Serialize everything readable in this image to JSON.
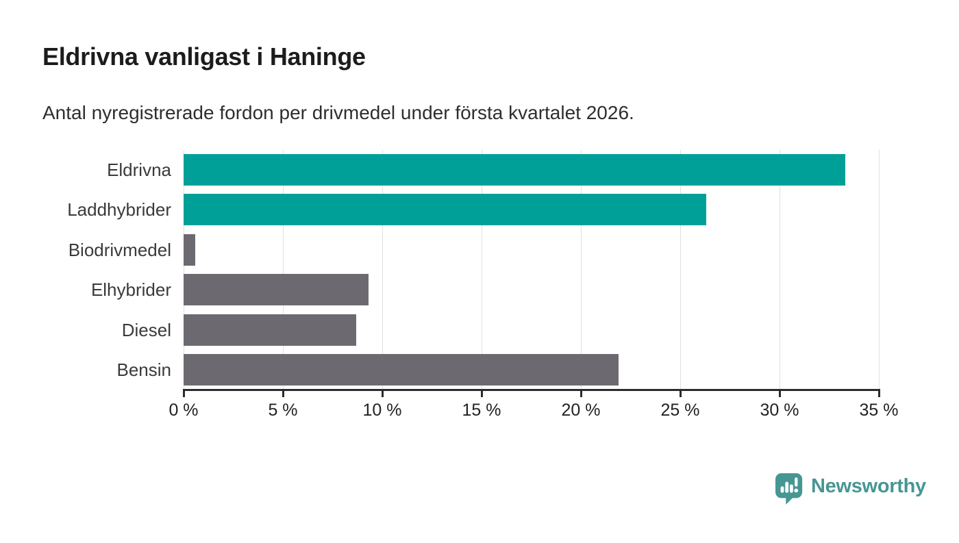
{
  "header": {
    "title": "Eldrivna vanligast i Haninge",
    "subtitle": "Antal nyregistrerade fordon per drivmedel under första kvartalet 2026."
  },
  "footer": {
    "brand": "Newsworthy"
  },
  "colors": {
    "highlight_bar": "#00a099",
    "default_bar": "#6c6a70",
    "gridline": "#e0e0e0",
    "axis": "#2b2b2b",
    "brand_teal": "#469693"
  },
  "chart_data": {
    "type": "bar",
    "orientation": "horizontal",
    "title": "Eldrivna vanligast i Haninge",
    "subtitle": "Antal nyregistrerade fordon per drivmedel under första kvartalet 2026.",
    "categories": [
      "Eldrivna",
      "Laddhybrider",
      "Biodrivmedel",
      "Elhybrider",
      "Diesel",
      "Bensin"
    ],
    "values": [
      33.3,
      26.3,
      0.6,
      9.3,
      8.7,
      21.9
    ],
    "unit": "%",
    "bar_colors": [
      "#00a099",
      "#00a099",
      "#6c6a70",
      "#6c6a70",
      "#6c6a70",
      "#6c6a70"
    ],
    "xlabel": "",
    "ylabel": "",
    "xlim": [
      0,
      35
    ],
    "xticks": [
      0,
      5,
      10,
      15,
      20,
      25,
      30,
      35
    ],
    "xtick_label_suffix": " %",
    "grid": true,
    "legend": false
  }
}
